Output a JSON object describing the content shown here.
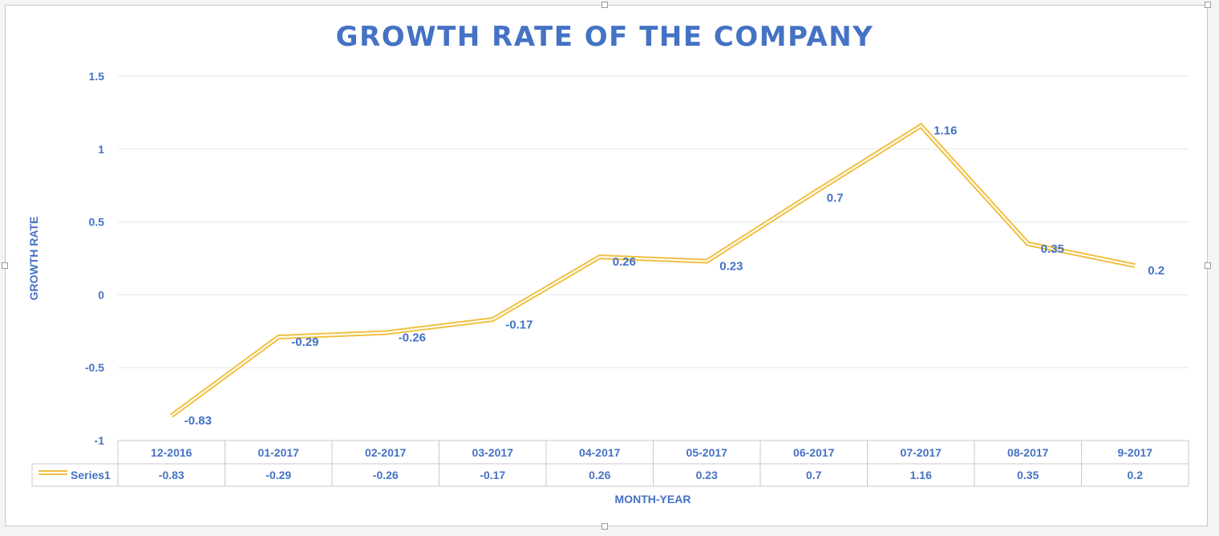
{
  "chart_data": {
    "type": "line",
    "title": "GROWTH RATE OF THE COMPANY",
    "xlabel": "MONTH-YEAR",
    "ylabel": "GROWTH RATE",
    "categories": [
      "12-2016",
      "01-2017",
      "02-2017",
      "03-2017",
      "04-2017",
      "05-2017",
      "06-2017",
      "07-2017",
      "08-2017",
      "9-2017"
    ],
    "series": [
      {
        "name": "Series1",
        "values": [
          -0.83,
          -0.29,
          -0.26,
          -0.17,
          0.26,
          0.23,
          0.7,
          1.16,
          0.35,
          0.2
        ],
        "color": "#f0c040"
      }
    ],
    "data_labels": [
      "-0.83",
      "-0.29",
      "-0.26",
      "-0.17",
      "0.26",
      "0.23",
      "0.7",
      "1.16",
      "0.35",
      "0.2"
    ],
    "yticks": [
      "1.5",
      "1",
      "0.5",
      "0",
      "-0.5",
      "-1"
    ],
    "ylim": [
      -1,
      1.5
    ],
    "grid": true,
    "data_table": true,
    "colors": {
      "text": "#4472c4",
      "line": "#f0c040",
      "grid": "#e6e6e6",
      "table_border": "#c9c9c9"
    }
  }
}
